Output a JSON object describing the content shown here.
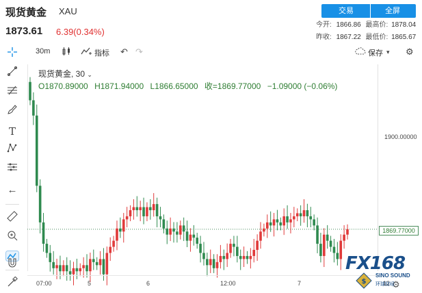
{
  "header": {
    "title": "现货黄金",
    "symbol": "XAU",
    "price": "1873.61",
    "change": "6.39(0.34%)",
    "trade_button": "交易",
    "fullscreen_button": "全屏",
    "stats": {
      "open_label": "今开:",
      "open_value": "1866.86",
      "high_label": "最高价:",
      "high_value": "1878.04",
      "prev_close_label": "昨收:",
      "prev_close_value": "1867.22",
      "low_label": "最低价:",
      "low_value": "1865.67"
    }
  },
  "toolbar": {
    "interval": "30m",
    "indicator_label": "指标",
    "save_label": "保存"
  },
  "chart": {
    "pair_label": "现货黄金, 30",
    "ohlc": {
      "open": "O1870.89000",
      "high": "H1871.94000",
      "low": "L1866.65000",
      "close": "收=1869.77000",
      "change": "−1.09000 (−0.06%)"
    },
    "y_tick": "1900.00000",
    "last_price_tag": "1869.77000",
    "x_ticks": [
      "07:00",
      "5",
      "6",
      "12:00",
      "7",
      "12"
    ]
  },
  "watermark": {
    "brand": "FX168",
    "sub_en": "SINO SOUND",
    "sub_cn": "环球财经"
  },
  "colors": {
    "up": "#e03a3a",
    "down": "#2f8a4f",
    "accent": "#1890e6"
  },
  "chart_data": {
    "type": "candlestick",
    "y_ticks": [
      1900
    ],
    "x_tick_labels": [
      "07:00",
      "5",
      "6",
      "12:00",
      "7",
      "12"
    ],
    "last": 1869.77,
    "closes": [
      1912,
      1907,
      1884,
      1872,
      1865,
      1862,
      1859,
      1857,
      1858,
      1856,
      1858,
      1856,
      1855,
      1857,
      1856,
      1857,
      1858,
      1856,
      1860,
      1859,
      1858,
      1860,
      1855,
      1862,
      1864,
      1866,
      1870,
      1869,
      1873,
      1874,
      1876,
      1877,
      1876,
      1877,
      1874,
      1877,
      1876,
      1878,
      1874,
      1873,
      1870,
      1868,
      1870,
      1869,
      1868,
      1871,
      1869,
      1866,
      1868,
      1867,
      1865,
      1862,
      1860,
      1858,
      1860,
      1857,
      1859,
      1861,
      1860,
      1862,
      1865,
      1864,
      1861,
      1860,
      1861,
      1860,
      1861,
      1863,
      1866,
      1869,
      1870,
      1872,
      1871,
      1873,
      1872,
      1871,
      1874,
      1872,
      1873,
      1874,
      1875,
      1874,
      1876,
      1874,
      1873,
      1871,
      1865,
      1861,
      1868,
      1866,
      1864,
      1862,
      1860,
      1866,
      1868,
      1869.77
    ]
  }
}
